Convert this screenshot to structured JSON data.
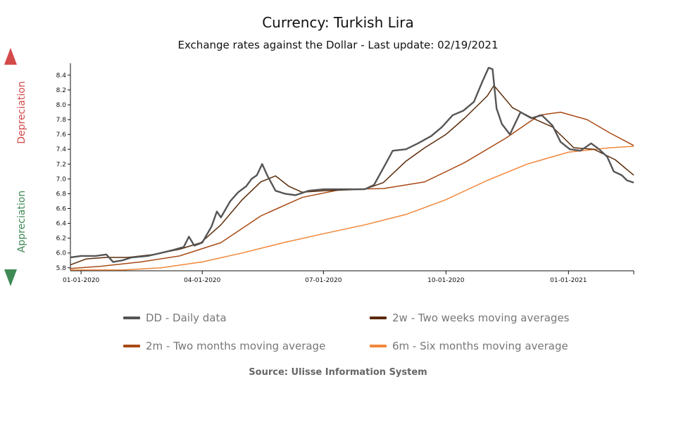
{
  "chart_data": {
    "type": "line",
    "title": "Currency: Turkish Lira",
    "subtitle": "Exchange rates against the Dollar - Last update: 02/19/2021",
    "source": "Source: Ulisse Information System",
    "y_axis": {
      "min": 5.76,
      "max": 8.56,
      "ticks": [
        "5.8",
        "6.0",
        "6.2",
        "6.4",
        "6.6",
        "6.8",
        "7.0",
        "7.2",
        "7.4",
        "7.6",
        "7.8",
        "8.0",
        "8.2",
        "8.4"
      ]
    },
    "x_axis": {
      "start": "2019-12-24",
      "end": "2021-02-19",
      "tick_labels": [
        "01-01-2020",
        "04-01-2020",
        "07-01-2020",
        "10-01-2020",
        "01-01-2021"
      ],
      "tick_dates": [
        "2020-01-01",
        "2020-04-01",
        "2020-07-01",
        "2020-10-01",
        "2021-01-01"
      ]
    },
    "side_labels": {
      "up": "Depreciation",
      "down": "Appreciation",
      "up_color": "#d44a4a",
      "down_color": "#3e8a55"
    },
    "legend_placement": "bottom",
    "series": [
      {
        "name": "DD - Daily data",
        "color": "#555555",
        "points": [
          [
            "2019-12-24",
            5.94
          ],
          [
            "2020-01-01",
            5.96
          ],
          [
            "2020-01-12",
            5.96
          ],
          [
            "2020-01-20",
            5.98
          ],
          [
            "2020-01-25",
            5.88
          ],
          [
            "2020-02-01",
            5.9
          ],
          [
            "2020-02-08",
            5.94
          ],
          [
            "2020-02-20",
            5.96
          ],
          [
            "2020-03-01",
            6.0
          ],
          [
            "2020-03-10",
            6.04
          ],
          [
            "2020-03-18",
            6.08
          ],
          [
            "2020-03-22",
            6.22
          ],
          [
            "2020-03-26",
            6.1
          ],
          [
            "2020-04-01",
            6.14
          ],
          [
            "2020-04-08",
            6.36
          ],
          [
            "2020-04-12",
            6.56
          ],
          [
            "2020-04-15",
            6.48
          ],
          [
            "2020-04-22",
            6.7
          ],
          [
            "2020-04-28",
            6.82
          ],
          [
            "2020-05-04",
            6.9
          ],
          [
            "2020-05-08",
            7.0
          ],
          [
            "2020-05-12",
            7.05
          ],
          [
            "2020-05-16",
            7.2
          ],
          [
            "2020-05-20",
            7.04
          ],
          [
            "2020-05-26",
            6.84
          ],
          [
            "2020-06-02",
            6.8
          ],
          [
            "2020-06-10",
            6.78
          ],
          [
            "2020-06-20",
            6.84
          ],
          [
            "2020-07-01",
            6.86
          ],
          [
            "2020-07-15",
            6.86
          ],
          [
            "2020-08-01",
            6.86
          ],
          [
            "2020-08-08",
            6.92
          ],
          [
            "2020-08-16",
            7.18
          ],
          [
            "2020-08-22",
            7.38
          ],
          [
            "2020-09-01",
            7.4
          ],
          [
            "2020-09-10",
            7.48
          ],
          [
            "2020-09-20",
            7.58
          ],
          [
            "2020-09-28",
            7.7
          ],
          [
            "2020-10-06",
            7.86
          ],
          [
            "2020-10-14",
            7.92
          ],
          [
            "2020-10-22",
            8.04
          ],
          [
            "2020-10-28",
            8.3
          ],
          [
            "2020-11-02",
            8.5
          ],
          [
            "2020-11-05",
            8.48
          ],
          [
            "2020-11-08",
            7.95
          ],
          [
            "2020-11-12",
            7.74
          ],
          [
            "2020-11-18",
            7.6
          ],
          [
            "2020-11-26",
            7.9
          ],
          [
            "2020-12-04",
            7.82
          ],
          [
            "2020-12-12",
            7.86
          ],
          [
            "2020-12-20",
            7.72
          ],
          [
            "2020-12-26",
            7.5
          ],
          [
            "2021-01-02",
            7.4
          ],
          [
            "2021-01-10",
            7.38
          ],
          [
            "2021-01-18",
            7.48
          ],
          [
            "2021-01-24",
            7.4
          ],
          [
            "2021-01-30",
            7.3
          ],
          [
            "2021-02-04",
            7.1
          ],
          [
            "2021-02-10",
            7.05
          ],
          [
            "2021-02-14",
            6.98
          ],
          [
            "2021-02-19",
            6.95
          ]
        ]
      },
      {
        "name": "2w - Two weeks moving averages",
        "color": "#5a2a08",
        "points": [
          [
            "2019-12-24",
            5.84
          ],
          [
            "2020-01-05",
            5.92
          ],
          [
            "2020-01-20",
            5.94
          ],
          [
            "2020-02-05",
            5.94
          ],
          [
            "2020-02-25",
            5.98
          ],
          [
            "2020-03-15",
            6.05
          ],
          [
            "2020-03-31",
            6.14
          ],
          [
            "2020-04-15",
            6.38
          ],
          [
            "2020-05-01",
            6.72
          ],
          [
            "2020-05-15",
            6.96
          ],
          [
            "2020-05-26",
            7.04
          ],
          [
            "2020-06-05",
            6.9
          ],
          [
            "2020-06-15",
            6.82
          ],
          [
            "2020-07-01",
            6.84
          ],
          [
            "2020-08-01",
            6.86
          ],
          [
            "2020-08-15",
            6.95
          ],
          [
            "2020-09-01",
            7.24
          ],
          [
            "2020-09-15",
            7.42
          ],
          [
            "2020-10-01",
            7.6
          ],
          [
            "2020-10-15",
            7.82
          ],
          [
            "2020-11-01",
            8.12
          ],
          [
            "2020-11-06",
            8.26
          ],
          [
            "2020-11-20",
            7.96
          ],
          [
            "2020-12-05",
            7.82
          ],
          [
            "2020-12-20",
            7.7
          ],
          [
            "2021-01-05",
            7.42
          ],
          [
            "2021-01-20",
            7.4
          ],
          [
            "2021-02-05",
            7.26
          ],
          [
            "2021-02-19",
            7.05
          ]
        ]
      },
      {
        "name": "2m - Two months moving average",
        "color": "#a94a15",
        "points": [
          [
            "2019-12-24",
            5.79
          ],
          [
            "2020-01-15",
            5.82
          ],
          [
            "2020-02-15",
            5.88
          ],
          [
            "2020-03-15",
            5.96
          ],
          [
            "2020-04-15",
            6.14
          ],
          [
            "2020-05-15",
            6.5
          ],
          [
            "2020-06-15",
            6.75
          ],
          [
            "2020-07-15",
            6.86
          ],
          [
            "2020-08-15",
            6.87
          ],
          [
            "2020-09-15",
            6.96
          ],
          [
            "2020-10-15",
            7.22
          ],
          [
            "2020-11-15",
            7.55
          ],
          [
            "2020-12-10",
            7.86
          ],
          [
            "2020-12-26",
            7.9
          ],
          [
            "2021-01-15",
            7.8
          ],
          [
            "2021-02-01",
            7.62
          ],
          [
            "2021-02-19",
            7.45
          ]
        ]
      },
      {
        "name": "6m - Six months moving average",
        "color": "#f0873a",
        "points": [
          [
            "2019-12-24",
            5.77
          ],
          [
            "2020-02-01",
            5.77
          ],
          [
            "2020-03-01",
            5.8
          ],
          [
            "2020-04-01",
            5.88
          ],
          [
            "2020-05-01",
            6.0
          ],
          [
            "2020-06-01",
            6.14
          ],
          [
            "2020-07-01",
            6.26
          ],
          [
            "2020-08-01",
            6.38
          ],
          [
            "2020-09-01",
            6.52
          ],
          [
            "2020-10-01",
            6.72
          ],
          [
            "2020-11-01",
            6.98
          ],
          [
            "2020-12-01",
            7.2
          ],
          [
            "2021-01-01",
            7.36
          ],
          [
            "2021-02-01",
            7.42
          ],
          [
            "2021-02-19",
            7.44
          ]
        ]
      }
    ]
  }
}
